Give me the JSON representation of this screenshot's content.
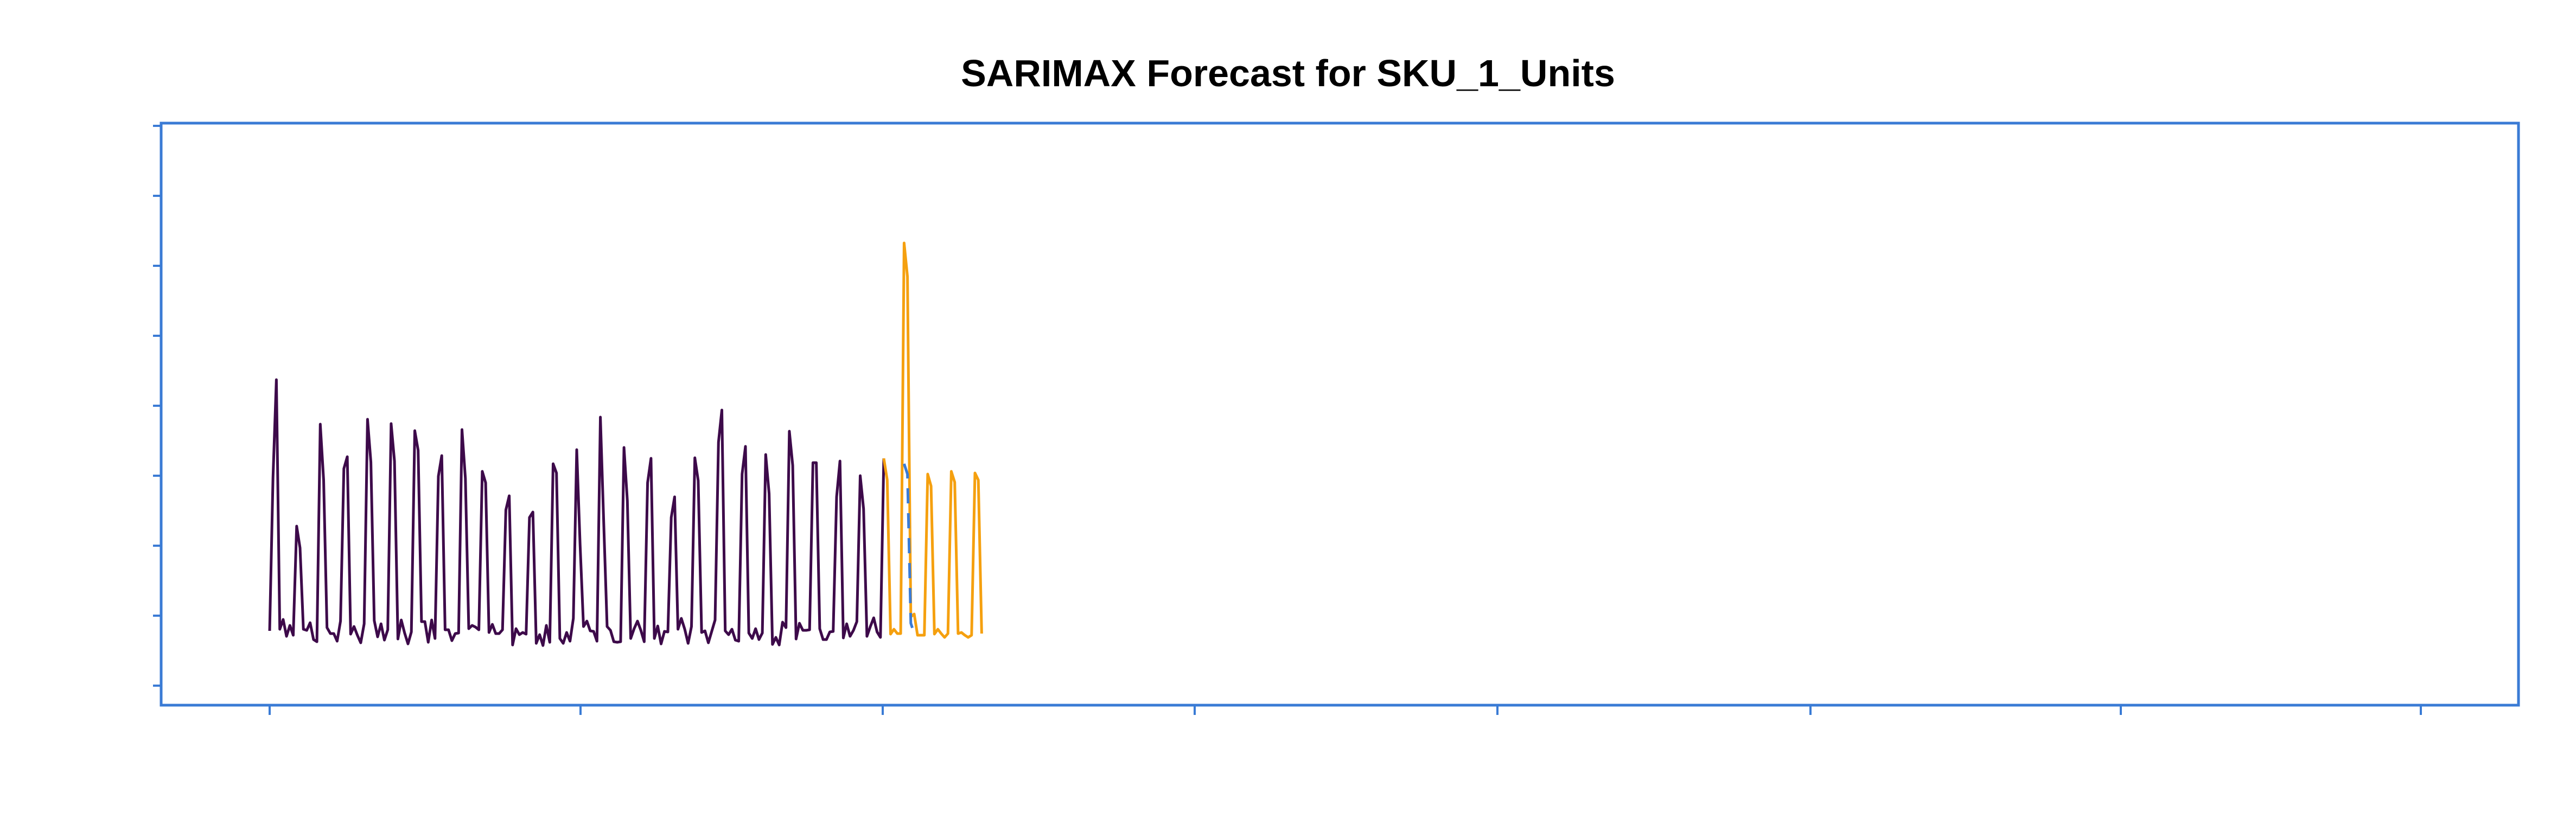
{
  "chart_data": {
    "type": "line",
    "title": "SARIMAX Forecast for SKU_1_Units",
    "xlabel": "",
    "ylabel": "",
    "grid": false,
    "legend": "none",
    "colors": {
      "history": "#3d0a4a",
      "forecast": "#f5a00f",
      "dashed": "#3a7bd5",
      "axes": "#3a7bd5"
    },
    "history": [
      92,
      375,
      555,
      95,
      113,
      82,
      102,
      84,
      285,
      245,
      95,
      93,
      107,
      76,
      72,
      473,
      370,
      98,
      87,
      87,
      73,
      110,
      391,
      413,
      86,
      100,
      84,
      70,
      105,
      482,
      403,
      111,
      81,
      105,
      75,
      94,
      474,
      405,
      77,
      112,
      88,
      68,
      90,
      461,
      425,
      109,
      109,
      71,
      112,
      78,
      377,
      415,
      94,
      94,
      74,
      87,
      88,
      463,
      373,
      96,
      102,
      99,
      94,
      386,
      365,
      89,
      104,
      87,
      87,
      94,
      315,
      341,
      66,
      96,
      85,
      89,
      86,
      301,
      311,
      69,
      85,
      65,
      102,
      71,
      400,
      383,
      78,
      69,
      89,
      73,
      115,
      426,
      251,
      100,
      110,
      92,
      91,
      73,
      486,
      290,
      100,
      93,
      72,
      71,
      72,
      430,
      332,
      78,
      96,
      110,
      93,
      72,
      365,
      410,
      78,
      101,
      68,
      91,
      90,
      301,
      339,
      95,
      115,
      95,
      69,
      100,
      411,
      369,
      89,
      92,
      70,
      91,
      112,
      440,
      499,
      92,
      85,
      95,
      75,
      73,
      381,
      432,
      88,
      78,
      96,
      76,
      88,
      417,
      345,
      67,
      80,
      66,
      108,
      98,
      460,
      397,
      77,
      106,
      93,
      93,
      94,
      402,
      402,
      96,
      76,
      76,
      90,
      91,
      339,
      405,
      79,
      105,
      82,
      93,
      109,
      378,
      317,
      82,
      100,
      116,
      90,
      80,
      410
    ],
    "forecast": [
      410,
      370,
      86,
      95,
      87,
      87,
      807,
      745,
      118,
      123,
      84,
      84,
      84,
      381,
      359,
      86,
      95,
      87,
      80,
      87,
      386,
      366,
      87,
      89,
      84,
      80,
      84,
      383,
      370,
      87
    ],
    "dashed_segment": [
      400,
      381,
      106,
      87
    ],
    "ylim": [
      0,
      880
    ]
  }
}
